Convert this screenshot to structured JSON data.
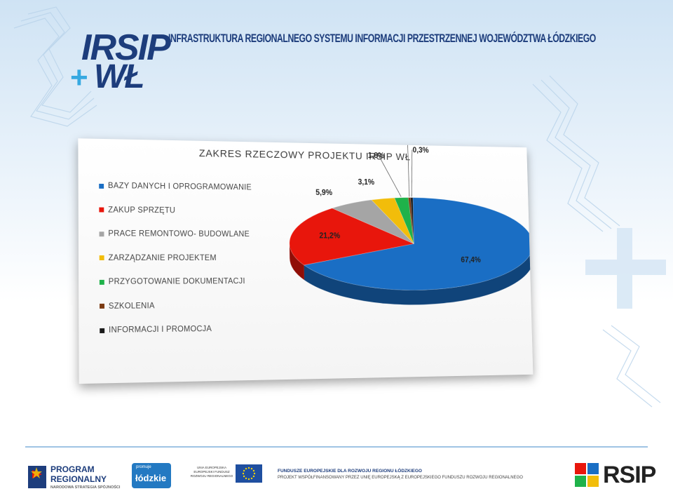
{
  "header": {
    "logo_line1": "IRSIP",
    "logo_plus": "+",
    "logo_line2": "WŁ",
    "title": "INFRASTRUKTURA REGIONALNEGO SYSTEMU INFORMACJI PRZESTRZENNEJ WOJEWÓDZTWA ŁÓDZKIEGO"
  },
  "colors": {
    "bazy": "#1a6ec4",
    "sprzet": "#e8160c",
    "prace": "#a5a5a5",
    "zarzadzanie": "#f2bd0a",
    "dokumentacja": "#1fb24a",
    "szkolenia": "#7b3a12",
    "promocja": "#1b1b1b",
    "brand": "#1d3d7c",
    "accent": "#36a9e1"
  },
  "chart_data": {
    "type": "pie",
    "title": "ZAKRES RZECZOWY PROJEKTU IRSIP WŁ",
    "legend_position": "left",
    "style": "3d",
    "slices": [
      {
        "name": "BAZY DANYCH I OPROGRAMOWANIE",
        "value": 67.4,
        "label": "67,4%",
        "color": "#1a6ec4"
      },
      {
        "name": "ZAKUP SPRZĘTU",
        "value": 21.2,
        "label": "21,2%",
        "color": "#e8160c"
      },
      {
        "name": "PRACE REMONTOWO- BUDOWLANE",
        "value": 5.9,
        "label": "5,9%",
        "color": "#a5a5a5"
      },
      {
        "name": "ZARZĄDZANIE PROJEKTEM",
        "value": 3.1,
        "label": "3,1%",
        "color": "#f2bd0a"
      },
      {
        "name": "PRZYGOTOWANIE DOKUMENTACJI",
        "value": 1.8,
        "label": "1,8%",
        "color": "#1fb24a"
      },
      {
        "name": "SZKOLENIA",
        "value": 0.3,
        "label": "0,3%",
        "color": "#7b3a12"
      },
      {
        "name": "INFORMACJI I PROMOCJA",
        "value": 0.3,
        "label": "0,3%",
        "color": "#1b1b1b"
      }
    ]
  },
  "footer": {
    "program_line1": "PROGRAM",
    "program_line2": "REGIONALNY",
    "program_line3": "NARODOWA STRATEGIA SPÓJNOŚCI",
    "lodzkie_small": "promuje",
    "lodzkie_big": "łódzkie",
    "ue_text": "UNIA EUROPEJSKA EUROPEJSKI FUNDUSZ ROZWOJU REGIONALNEGO",
    "fund_title": "FUNDUSZE EUROPEJSKIE DLA ROZWOJU REGIONU ŁÓDZKIEGO",
    "fund_subtitle": "PROJEKT WSPÓŁFINANSOWANY PRZEZ UNIĘ EUROPEJSKĄ Z EUROPEJSKIEGO FUNDUSZU ROZWOJU REGIONALNEGO",
    "rsip_text": "RSIP"
  }
}
